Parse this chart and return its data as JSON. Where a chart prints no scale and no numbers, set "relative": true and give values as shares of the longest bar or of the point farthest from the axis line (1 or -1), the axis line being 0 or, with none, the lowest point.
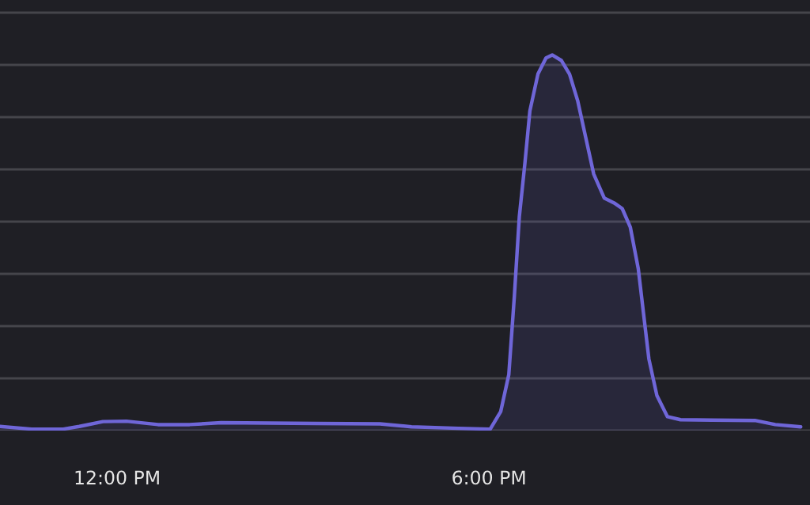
{
  "chart_data": {
    "type": "area",
    "relative": true,
    "x": [
      10.11,
      10.62,
      11.13,
      11.39,
      11.77,
      12.15,
      12.66,
      13.17,
      13.68,
      15.22,
      16.24,
      16.75,
      17.51,
      18.02,
      18.19,
      18.32,
      18.41,
      18.49,
      18.58,
      18.66,
      18.79,
      18.92,
      19.02,
      19.17,
      19.3,
      19.43,
      19.56,
      19.69,
      19.86,
      20.02,
      20.15,
      20.28,
      20.41,
      20.49,
      20.58,
      20.71,
      20.88,
      21.09,
      21.6,
      22.29,
      22.62,
      23.03
    ],
    "series": [
      {
        "color": "#6f66d8",
        "values": [
          0.011,
          0.004,
          0.004,
          0.011,
          0.024,
          0.025,
          0.016,
          0.016,
          0.021,
          0.019,
          0.018,
          0.01,
          0.006,
          0.004,
          0.051,
          0.149,
          0.359,
          0.57,
          0.712,
          0.851,
          0.949,
          0.992,
          1.0,
          0.985,
          0.949,
          0.879,
          0.781,
          0.683,
          0.619,
          0.606,
          0.591,
          0.542,
          0.43,
          0.317,
          0.191,
          0.093,
          0.037,
          0.029,
          0.028,
          0.027,
          0.016,
          0.01
        ]
      }
    ],
    "xlim": [
      10.11,
      23.18
    ],
    "xticks": [
      {
        "value": 12,
        "label": "12:00 PM"
      },
      {
        "value": 18,
        "label": "6:00 PM"
      }
    ],
    "grid": "y",
    "legend": false
  }
}
